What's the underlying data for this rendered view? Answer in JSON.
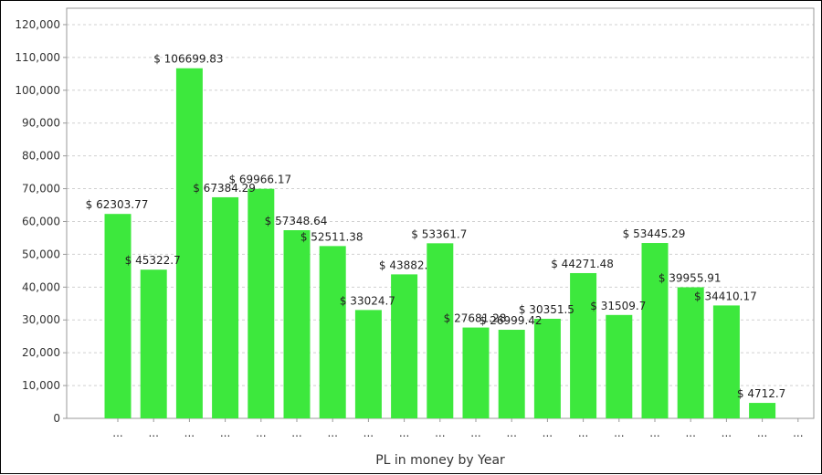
{
  "chart_data": {
    "type": "bar",
    "title": "",
    "xlabel": "PL in money by Year",
    "ylabel": "",
    "ylim": [
      0,
      125000
    ],
    "yticks": [
      "0",
      "10,000",
      "20,000",
      "30,000",
      "40,000",
      "50,000",
      "60,000",
      "70,000",
      "80,000",
      "90,000",
      "100,000",
      "110,000",
      "120,000"
    ],
    "grid": true,
    "legend": "none",
    "bar_color": "#3de83d",
    "categories": [
      "...",
      "...",
      "...",
      "...",
      "...",
      "...",
      "...",
      "...",
      "...",
      "...",
      "...",
      "...",
      "...",
      "...",
      "...",
      "...",
      "...",
      "...",
      "...",
      "..."
    ],
    "values": [
      62303.77,
      45322.7,
      106699.83,
      67384.29,
      69966.17,
      57348.64,
      52511.38,
      33024.7,
      43882.0,
      53361.7,
      27681.28,
      26999.42,
      30351.5,
      44271.48,
      31509.7,
      53445.29,
      39955.91,
      34410.17,
      4712.7,
      0
    ],
    "data_labels": [
      "$ 62303.77",
      "$ 45322.7",
      "$ 106699.83",
      "$ 67384.29",
      "$ 69966.17",
      "$ 57348.64",
      "$ 52511.38",
      "$ 33024.7",
      "$ 43882.",
      "$ 53361.7",
      "$ 27681.28",
      "$ 26999.42",
      "$ 30351.5",
      "$ 44271.48",
      "$ 31509.7",
      "$ 53445.29",
      "$ 39955.91",
      "$ 34410.17",
      "$ 4712.7",
      ""
    ]
  }
}
